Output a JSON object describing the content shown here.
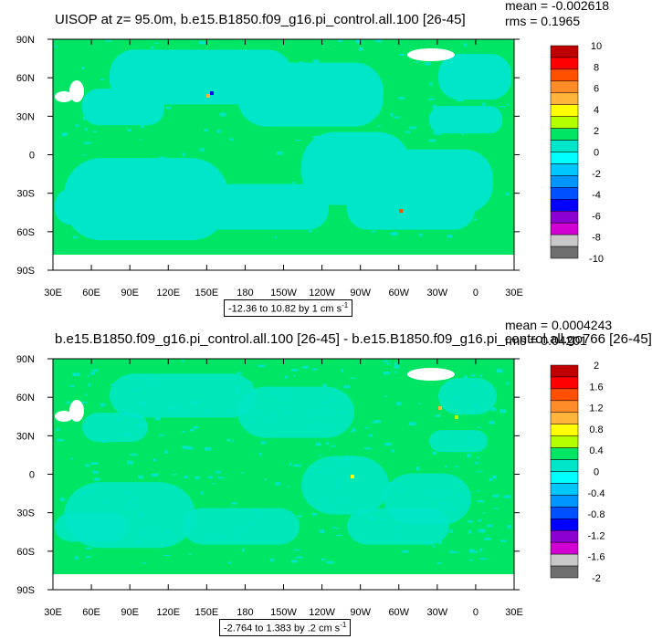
{
  "chart_data": [
    {
      "type": "heatmap",
      "title": "UISOP at z=  95.0m, b.e15.B1850.f09_g16.pi_control.all.100 [26-45]",
      "mean_text": "mean = -0.002618",
      "rms_text": "rms = 0.1965",
      "range_text": "-12.36 to 10.82 by 1 cm s",
      "range_unit_exp": "-1",
      "x_ticks": [
        "30E",
        "60E",
        "90E",
        "120E",
        "150E",
        "180",
        "150W",
        "120W",
        "90W",
        "60W",
        "30W",
        "0",
        "30E"
      ],
      "y_ticks": [
        "90N",
        "60N",
        "30N",
        "0",
        "30S",
        "60S",
        "90S"
      ],
      "legend_labels": [
        "10",
        "8",
        "6",
        "4",
        "2",
        "0",
        "-2",
        "-4",
        "-6",
        "-8",
        "-10"
      ],
      "colors": [
        "#c00000",
        "#ff0000",
        "#ff5000",
        "#ff8c28",
        "#ffb43c",
        "#ffff00",
        "#b4ff00",
        "#00e664",
        "#00e6c8",
        "#00ffff",
        "#00c8ff",
        "#0096ff",
        "#0050ff",
        "#0000ff",
        "#8c00d2",
        "#d200d2",
        "#c8c8c8",
        "#6e6e6e"
      ]
    },
    {
      "type": "heatmap",
      "title": "b.e15.B1850.f09_g16.pi_control.all.100 [26-45] - b.e15.B1850.f09_g16.pi_control.all.go766 [26-45]",
      "mean_text": "mean = 0.0004243",
      "rms_text": "rms = 0.04201",
      "range_text": "-2.764 to 1.383 by .2 cm s",
      "range_unit_exp": "-1",
      "x_ticks": [
        "30E",
        "60E",
        "90E",
        "120E",
        "150E",
        "180",
        "150W",
        "120W",
        "90W",
        "60W",
        "30W",
        "0",
        "30E"
      ],
      "y_ticks": [
        "90N",
        "60N",
        "30N",
        "0",
        "30S",
        "60S",
        "90S"
      ],
      "legend_labels": [
        "2",
        "1.6",
        "1.2",
        "0.8",
        "0.4",
        "0",
        "-0.4",
        "-0.8",
        "-1.2",
        "-1.6",
        "-2"
      ],
      "colors": [
        "#c00000",
        "#ff0000",
        "#ff5000",
        "#ff8c28",
        "#ffb43c",
        "#ffff00",
        "#b4ff00",
        "#00e664",
        "#00e6c8",
        "#00ffff",
        "#00c8ff",
        "#0096ff",
        "#0050ff",
        "#0000ff",
        "#8c00d2",
        "#d200d2",
        "#c8c8c8",
        "#6e6e6e"
      ]
    }
  ]
}
